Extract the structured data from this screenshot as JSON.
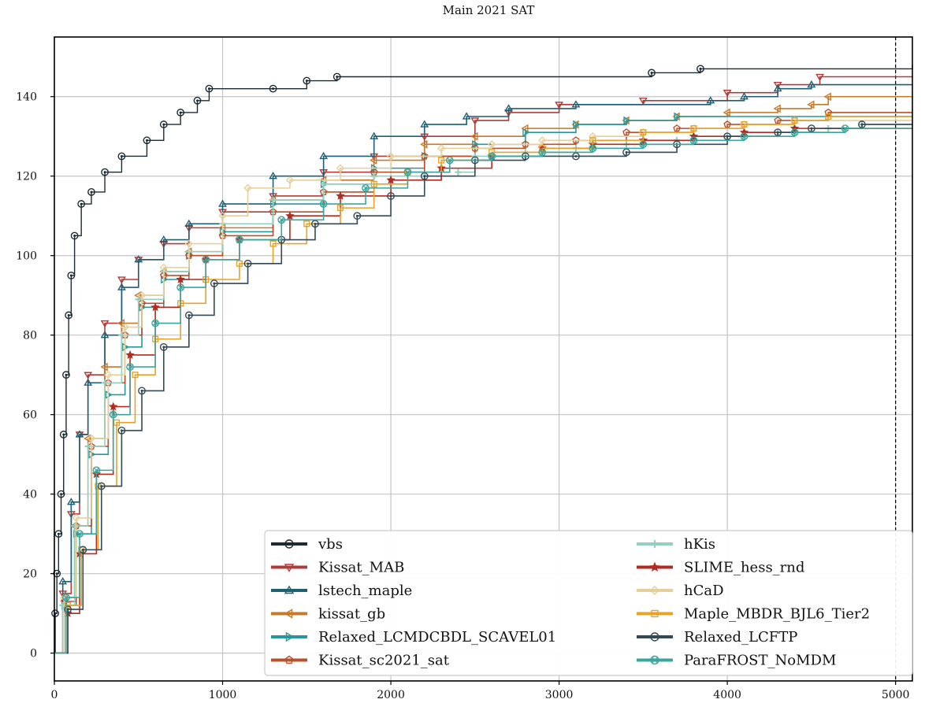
{
  "chart_data": {
    "type": "line",
    "title": "Main 2021 SAT",
    "xlabel": "",
    "ylabel": "",
    "xlim": [
      0,
      5100
    ],
    "ylim": [
      -7,
      155
    ],
    "x_ticks": [
      0,
      1000,
      2000,
      3000,
      4000,
      5000
    ],
    "y_ticks": [
      0,
      20,
      40,
      60,
      80,
      100,
      120,
      140
    ],
    "grid": true,
    "timeout_line_x": 5000,
    "legend_position": "bottom-right",
    "legend_columns": 2,
    "series": [
      {
        "name": "vbs",
        "color": "#1b2a33",
        "marker": "circle",
        "points": [
          [
            0,
            0
          ],
          [
            5,
            10
          ],
          [
            15,
            20
          ],
          [
            25,
            30
          ],
          [
            40,
            40
          ],
          [
            55,
            55
          ],
          [
            70,
            70
          ],
          [
            85,
            85
          ],
          [
            100,
            95
          ],
          [
            120,
            105
          ],
          [
            160,
            113
          ],
          [
            220,
            116
          ],
          [
            300,
            121
          ],
          [
            400,
            125
          ],
          [
            550,
            129
          ],
          [
            650,
            133
          ],
          [
            750,
            136
          ],
          [
            850,
            139
          ],
          [
            920,
            142
          ],
          [
            1300,
            142
          ],
          [
            1500,
            144
          ],
          [
            1680,
            145
          ],
          [
            3550,
            146
          ],
          [
            3840,
            147
          ],
          [
            5100,
            148
          ]
        ]
      },
      {
        "name": "Kissat_MAB",
        "color": "#b23a3a",
        "marker": "triangle-down",
        "points": [
          [
            0,
            0
          ],
          [
            50,
            15
          ],
          [
            100,
            35
          ],
          [
            150,
            55
          ],
          [
            200,
            70
          ],
          [
            300,
            83
          ],
          [
            400,
            94
          ],
          [
            500,
            99
          ],
          [
            650,
            103
          ],
          [
            800,
            107
          ],
          [
            1000,
            111
          ],
          [
            1300,
            115
          ],
          [
            1600,
            121
          ],
          [
            1900,
            125
          ],
          [
            2200,
            130
          ],
          [
            2500,
            134
          ],
          [
            2700,
            136
          ],
          [
            3000,
            138
          ],
          [
            3500,
            139
          ],
          [
            4000,
            141
          ],
          [
            4300,
            143
          ],
          [
            4550,
            145
          ],
          [
            5100,
            145
          ]
        ]
      },
      {
        "name": "lstech_maple",
        "color": "#1d5f73",
        "marker": "triangle-up",
        "points": [
          [
            0,
            0
          ],
          [
            50,
            18
          ],
          [
            100,
            38
          ],
          [
            150,
            55
          ],
          [
            200,
            68
          ],
          [
            300,
            80
          ],
          [
            400,
            92
          ],
          [
            500,
            99
          ],
          [
            650,
            104
          ],
          [
            800,
            108
          ],
          [
            1000,
            113
          ],
          [
            1300,
            120
          ],
          [
            1600,
            125
          ],
          [
            1900,
            130
          ],
          [
            2200,
            133
          ],
          [
            2450,
            135
          ],
          [
            2700,
            137
          ],
          [
            3100,
            138
          ],
          [
            3900,
            139
          ],
          [
            4100,
            140
          ],
          [
            4300,
            142
          ],
          [
            4500,
            143
          ],
          [
            5100,
            143
          ]
        ]
      },
      {
        "name": "kissat_gb",
        "color": "#c8782a",
        "marker": "triangle-left",
        "points": [
          [
            0,
            0
          ],
          [
            60,
            14
          ],
          [
            120,
            32
          ],
          [
            200,
            54
          ],
          [
            300,
            72
          ],
          [
            400,
            83
          ],
          [
            500,
            90
          ],
          [
            650,
            96
          ],
          [
            800,
            101
          ],
          [
            1000,
            107
          ],
          [
            1300,
            114
          ],
          [
            1600,
            119
          ],
          [
            1900,
            124
          ],
          [
            2200,
            128
          ],
          [
            2500,
            130
          ],
          [
            2800,
            132
          ],
          [
            3100,
            133
          ],
          [
            3400,
            134
          ],
          [
            3700,
            135
          ],
          [
            4000,
            136
          ],
          [
            4300,
            137
          ],
          [
            4500,
            138
          ],
          [
            4600,
            140
          ],
          [
            5100,
            140
          ]
        ]
      },
      {
        "name": "Relaxed_LCMDCBDL_SCAVEL01",
        "color": "#27989a",
        "marker": "triangle-right",
        "points": [
          [
            0,
            0
          ],
          [
            60,
            12
          ],
          [
            130,
            30
          ],
          [
            220,
            50
          ],
          [
            320,
            65
          ],
          [
            420,
            77
          ],
          [
            520,
            87
          ],
          [
            650,
            94
          ],
          [
            800,
            100
          ],
          [
            1000,
            106
          ],
          [
            1300,
            113
          ],
          [
            1600,
            118
          ],
          [
            1900,
            122
          ],
          [
            2200,
            125
          ],
          [
            2500,
            128
          ],
          [
            2800,
            131
          ],
          [
            3100,
            133
          ],
          [
            3400,
            134
          ],
          [
            3700,
            135
          ],
          [
            5100,
            135
          ]
        ]
      },
      {
        "name": "Kissat_sc2021_sat",
        "color": "#b8512a",
        "marker": "pentagon",
        "points": [
          [
            0,
            0
          ],
          [
            60,
            13
          ],
          [
            130,
            32
          ],
          [
            220,
            52
          ],
          [
            320,
            68
          ],
          [
            420,
            80
          ],
          [
            520,
            88
          ],
          [
            650,
            95
          ],
          [
            800,
            100
          ],
          [
            1000,
            105
          ],
          [
            1300,
            111
          ],
          [
            1600,
            116
          ],
          [
            1900,
            121
          ],
          [
            2200,
            125
          ],
          [
            2500,
            127
          ],
          [
            2800,
            128
          ],
          [
            3100,
            129
          ],
          [
            3400,
            131
          ],
          [
            3700,
            132
          ],
          [
            4000,
            133
          ],
          [
            4300,
            134
          ],
          [
            4600,
            136
          ],
          [
            5100,
            136
          ]
        ]
      },
      {
        "name": "hKis",
        "color": "#95cfc0",
        "marker": "plus",
        "points": [
          [
            0,
            0
          ],
          [
            50,
            12
          ],
          [
            120,
            32
          ],
          [
            200,
            52
          ],
          [
            300,
            68
          ],
          [
            400,
            80
          ],
          [
            500,
            89
          ],
          [
            650,
            96
          ],
          [
            800,
            101
          ],
          [
            1000,
            108
          ],
          [
            1300,
            114
          ],
          [
            1600,
            118
          ],
          [
            1900,
            120
          ],
          [
            2200,
            120
          ],
          [
            2400,
            121
          ],
          [
            2500,
            125
          ],
          [
            2800,
            126
          ],
          [
            3100,
            127
          ],
          [
            3400,
            128
          ],
          [
            3700,
            129
          ],
          [
            4000,
            130
          ],
          [
            4300,
            131
          ],
          [
            4600,
            132
          ],
          [
            4800,
            133
          ],
          [
            5100,
            133
          ]
        ]
      },
      {
        "name": "SLIME_hess_rnd",
        "color": "#b22a20",
        "marker": "star",
        "points": [
          [
            0,
            0
          ],
          [
            80,
            10
          ],
          [
            150,
            25
          ],
          [
            250,
            45
          ],
          [
            350,
            62
          ],
          [
            450,
            75
          ],
          [
            600,
            87
          ],
          [
            750,
            94
          ],
          [
            900,
            99
          ],
          [
            1100,
            104
          ],
          [
            1400,
            110
          ],
          [
            1700,
            115
          ],
          [
            2000,
            119
          ],
          [
            2300,
            122
          ],
          [
            2600,
            125
          ],
          [
            2900,
            127
          ],
          [
            3200,
            128
          ],
          [
            3500,
            129
          ],
          [
            3800,
            130
          ],
          [
            4100,
            131
          ],
          [
            4400,
            132
          ],
          [
            5100,
            132
          ]
        ]
      },
      {
        "name": "hCaD",
        "color": "#e5cf9a",
        "marker": "diamond",
        "points": [
          [
            0,
            0
          ],
          [
            60,
            14
          ],
          [
            130,
            34
          ],
          [
            220,
            54
          ],
          [
            320,
            70
          ],
          [
            420,
            82
          ],
          [
            520,
            90
          ],
          [
            650,
            97
          ],
          [
            800,
            103
          ],
          [
            1000,
            110
          ],
          [
            1150,
            117
          ],
          [
            1400,
            119
          ],
          [
            1700,
            122
          ],
          [
            2000,
            125
          ],
          [
            2300,
            127
          ],
          [
            2600,
            128
          ],
          [
            2900,
            129
          ],
          [
            3200,
            130
          ],
          [
            3500,
            131
          ],
          [
            3800,
            132
          ],
          [
            4100,
            133
          ],
          [
            4400,
            134
          ],
          [
            5100,
            134
          ]
        ]
      },
      {
        "name": "Maple_MBDR_BJL6_Tier2",
        "color": "#e8a227",
        "marker": "square",
        "points": [
          [
            0,
            0
          ],
          [
            80,
            12
          ],
          [
            160,
            26
          ],
          [
            260,
            42
          ],
          [
            370,
            58
          ],
          [
            480,
            70
          ],
          [
            600,
            79
          ],
          [
            750,
            88
          ],
          [
            900,
            94
          ],
          [
            1100,
            98
          ],
          [
            1300,
            103
          ],
          [
            1500,
            108
          ],
          [
            1700,
            112
          ],
          [
            1900,
            118
          ],
          [
            2100,
            121
          ],
          [
            2300,
            124
          ],
          [
            2600,
            126
          ],
          [
            2900,
            127
          ],
          [
            3200,
            129
          ],
          [
            3500,
            131
          ],
          [
            3800,
            132
          ],
          [
            4100,
            133
          ],
          [
            4400,
            134
          ],
          [
            4600,
            135
          ],
          [
            5100,
            135
          ]
        ]
      },
      {
        "name": "Relaxed_LCFTP",
        "color": "#344955",
        "marker": "circle",
        "points": [
          [
            0,
            0
          ],
          [
            80,
            11
          ],
          [
            170,
            26
          ],
          [
            280,
            42
          ],
          [
            400,
            56
          ],
          [
            520,
            66
          ],
          [
            650,
            77
          ],
          [
            800,
            85
          ],
          [
            950,
            93
          ],
          [
            1150,
            98
          ],
          [
            1350,
            104
          ],
          [
            1550,
            108
          ],
          [
            1800,
            110
          ],
          [
            2000,
            115
          ],
          [
            2200,
            120
          ],
          [
            2500,
            124
          ],
          [
            2800,
            125
          ],
          [
            3100,
            125
          ],
          [
            3400,
            126
          ],
          [
            3700,
            128
          ],
          [
            4000,
            130
          ],
          [
            4300,
            131
          ],
          [
            4500,
            132
          ],
          [
            4800,
            133
          ],
          [
            5100,
            133
          ]
        ]
      },
      {
        "name": "ParaFROST_NoMDM",
        "color": "#3aa59c",
        "marker": "x-circle",
        "points": [
          [
            0,
            0
          ],
          [
            70,
            14
          ],
          [
            150,
            30
          ],
          [
            250,
            46
          ],
          [
            350,
            60
          ],
          [
            450,
            72
          ],
          [
            600,
            83
          ],
          [
            750,
            92
          ],
          [
            900,
            99
          ],
          [
            1100,
            104
          ],
          [
            1350,
            109
          ],
          [
            1600,
            113
          ],
          [
            1850,
            117
          ],
          [
            2100,
            121
          ],
          [
            2350,
            124
          ],
          [
            2600,
            125
          ],
          [
            2900,
            126
          ],
          [
            3200,
            127
          ],
          [
            3500,
            128
          ],
          [
            3800,
            129
          ],
          [
            4100,
            130
          ],
          [
            4400,
            131
          ],
          [
            4700,
            132
          ],
          [
            5100,
            132
          ]
        ]
      }
    ]
  }
}
